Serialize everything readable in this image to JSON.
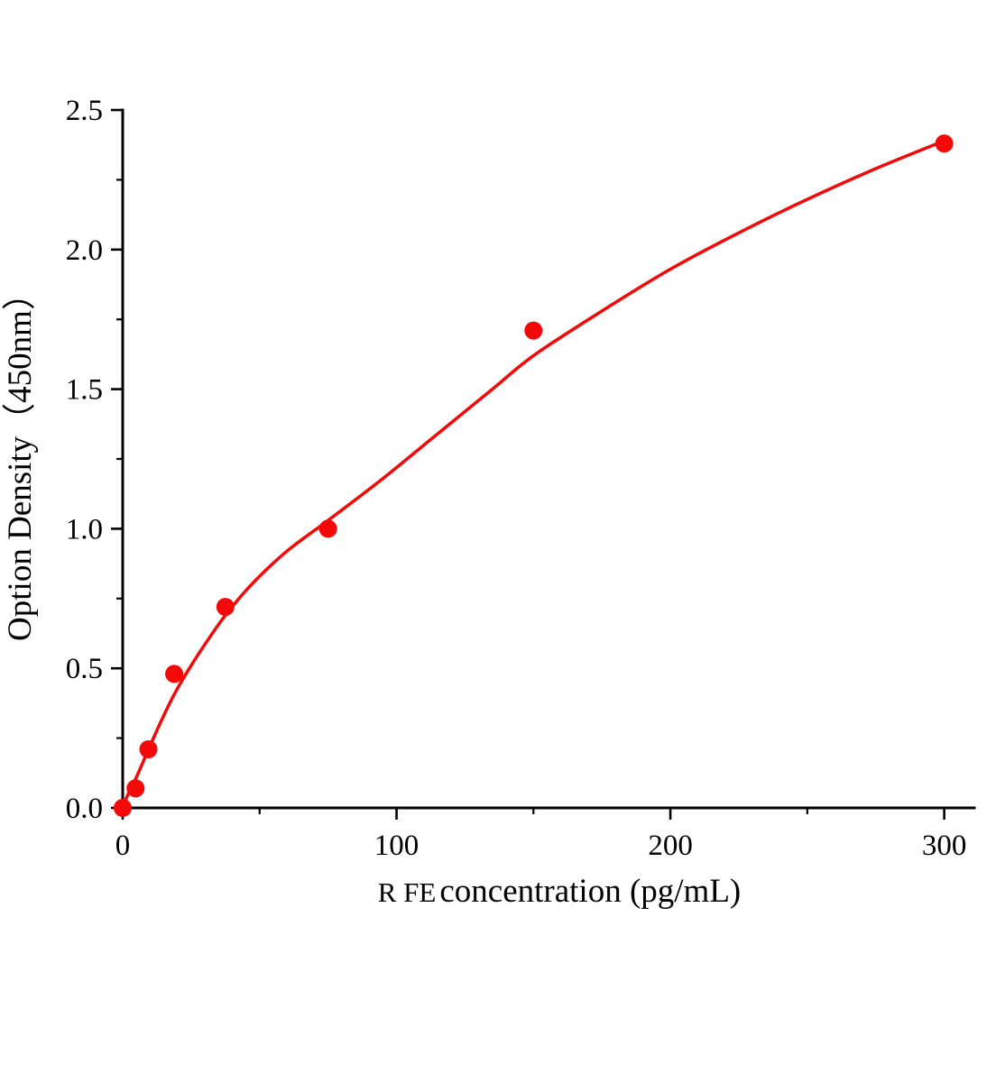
{
  "chart_data": {
    "type": "scatter",
    "title": "",
    "xlabel": "R FE concentration (pg/mL)",
    "xlabel_prefix": "R FE",
    "xlabel_rest": " concentration (pg/mL)",
    "ylabel": "Option Density（450nm）",
    "xlim": [
      0,
      311
    ],
    "ylim": [
      0,
      2.5
    ],
    "x_ticks": [
      0,
      100,
      200,
      300
    ],
    "x_minor_ticks": [
      50,
      150,
      250
    ],
    "y_ticks": [
      0,
      0.5,
      1,
      1.5,
      2,
      2.5
    ],
    "y_tick_labels": [
      "0.0",
      "0.5",
      "1.0",
      "1.5",
      "2.0",
      "2.5"
    ],
    "y_minor_ticks": [
      0.25,
      0.75,
      1.25,
      1.75,
      2.25
    ],
    "grid": false,
    "legend": "none",
    "series_color": "#f40808",
    "axis_color": "#000000",
    "marker": "circle",
    "points": [
      {
        "x": 0,
        "y": 0.0
      },
      {
        "x": 4.7,
        "y": 0.07
      },
      {
        "x": 9.4,
        "y": 0.21
      },
      {
        "x": 18.8,
        "y": 0.48
      },
      {
        "x": 37.5,
        "y": 0.72
      },
      {
        "x": 75,
        "y": 1.0
      },
      {
        "x": 150,
        "y": 1.71
      },
      {
        "x": 300,
        "y": 2.38
      }
    ],
    "curve": [
      [
        0,
        0
      ],
      [
        2,
        0.05
      ],
      [
        5,
        0.11
      ],
      [
        9,
        0.2
      ],
      [
        14,
        0.31
      ],
      [
        19,
        0.41
      ],
      [
        25,
        0.51
      ],
      [
        31,
        0.6
      ],
      [
        37.5,
        0.69
      ],
      [
        47,
        0.8
      ],
      [
        60,
        0.92
      ],
      [
        75,
        1.03
      ],
      [
        95,
        1.18
      ],
      [
        115,
        1.34
      ],
      [
        135,
        1.5
      ],
      [
        150,
        1.62
      ],
      [
        175,
        1.78
      ],
      [
        200,
        1.93
      ],
      [
        225,
        2.06
      ],
      [
        250,
        2.18
      ],
      [
        275,
        2.29
      ],
      [
        300,
        2.39
      ]
    ]
  }
}
